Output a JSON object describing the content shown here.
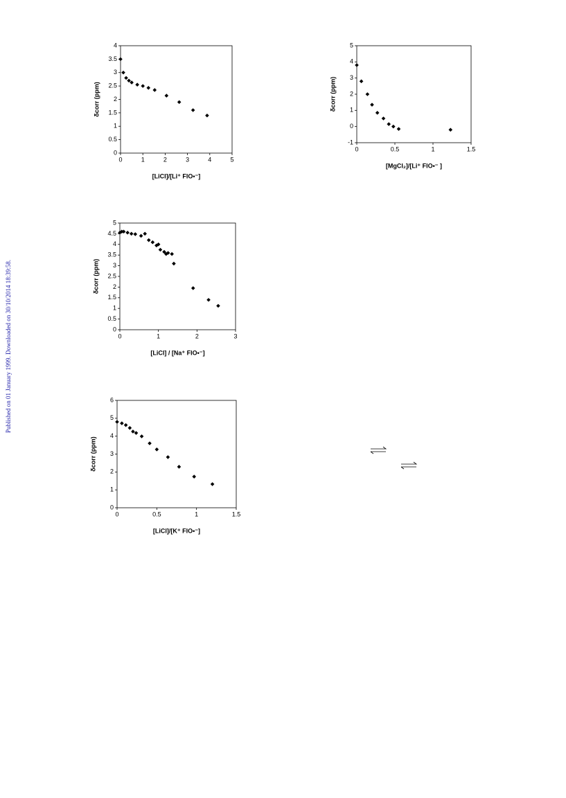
{
  "side_note": "Published on 01 January 1999. Downloaded on 30/10/2014 18:39:58.",
  "chart_data": [
    {
      "type": "scatter",
      "xlabel": "[LiCl]/[Li⁺ FlO•⁻]",
      "ylabel": "δcorr (ppm)",
      "color": "#000000",
      "x": [
        0,
        0.125,
        0.25,
        0.375,
        0.5,
        0.75,
        1.0,
        1.25,
        1.53,
        2.06,
        2.63,
        3.25,
        3.88
      ],
      "values": [
        3.5,
        3.0,
        2.8,
        2.7,
        2.63,
        2.55,
        2.5,
        2.43,
        2.35,
        2.14,
        1.9,
        1.6,
        1.4
      ],
      "xlim": [
        0,
        5
      ],
      "xticks": [
        0,
        1,
        2,
        3,
        4,
        5
      ],
      "ylim": [
        0,
        4
      ],
      "yticks": [
        0,
        0.5,
        1,
        1.5,
        2,
        2.5,
        3,
        3.5,
        4
      ]
    },
    {
      "type": "scatter",
      "xlabel": "[MgCl₂]/[Li⁺ FlO•⁻ ]",
      "ylabel": "δcorr (ppm)",
      "color": "#000000",
      "x": [
        0,
        0.06,
        0.14,
        0.2,
        0.27,
        0.35,
        0.42,
        0.48,
        0.55,
        1.23
      ],
      "values": [
        3.8,
        2.8,
        2.0,
        1.35,
        0.85,
        0.5,
        0.15,
        0.0,
        -0.15,
        -0.2
      ],
      "xlim": [
        0,
        1.5
      ],
      "xticks": [
        0,
        0.5,
        1,
        1.5
      ],
      "ylim": [
        -1,
        5
      ],
      "yticks": [
        -1,
        0,
        1,
        2,
        3,
        4,
        5
      ]
    },
    {
      "type": "scatter",
      "xlabel": "[LiCl] / [Na⁺ FlO•⁻]",
      "ylabel": "δcorr (ppm)",
      "color": "#000000",
      "x": [
        0,
        0.05,
        0.1,
        0.2,
        0.3,
        0.4,
        0.55,
        0.65,
        0.75,
        0.85,
        0.95,
        1.0,
        1.05,
        1.15,
        1.2,
        1.25,
        1.35,
        1.4,
        1.9,
        2.3,
        2.55
      ],
      "values": [
        4.55,
        4.6,
        4.6,
        4.55,
        4.5,
        4.48,
        4.4,
        4.5,
        4.2,
        4.1,
        3.95,
        4.0,
        3.75,
        3.65,
        3.55,
        3.6,
        3.55,
        3.1,
        1.95,
        1.4,
        1.12
      ],
      "xlim": [
        0,
        3
      ],
      "xticks": [
        0,
        1,
        2,
        3
      ],
      "ylim": [
        0,
        5
      ],
      "yticks": [
        0,
        0.5,
        1,
        1.5,
        2,
        2.5,
        3,
        3.5,
        4,
        4.5,
        5
      ]
    },
    {
      "type": "scatter",
      "xlabel": "[LiCl]/[K⁺ FlO•⁻]",
      "ylabel": "δcorr (ppm)",
      "color": "#000000",
      "x": [
        0,
        0.06,
        0.11,
        0.16,
        0.2,
        0.24,
        0.31,
        0.41,
        0.5,
        0.64,
        0.78,
        0.97,
        1.2
      ],
      "values": [
        4.8,
        4.72,
        4.62,
        4.46,
        4.26,
        4.18,
        3.99,
        3.6,
        3.26,
        2.83,
        2.29,
        1.74,
        1.32
      ],
      "xlim": [
        0,
        1.5
      ],
      "xticks": [
        0,
        0.5,
        1,
        1.5
      ],
      "ylim": [
        0,
        6
      ],
      "yticks": [
        0,
        1,
        2,
        3,
        4,
        5,
        6
      ]
    }
  ]
}
